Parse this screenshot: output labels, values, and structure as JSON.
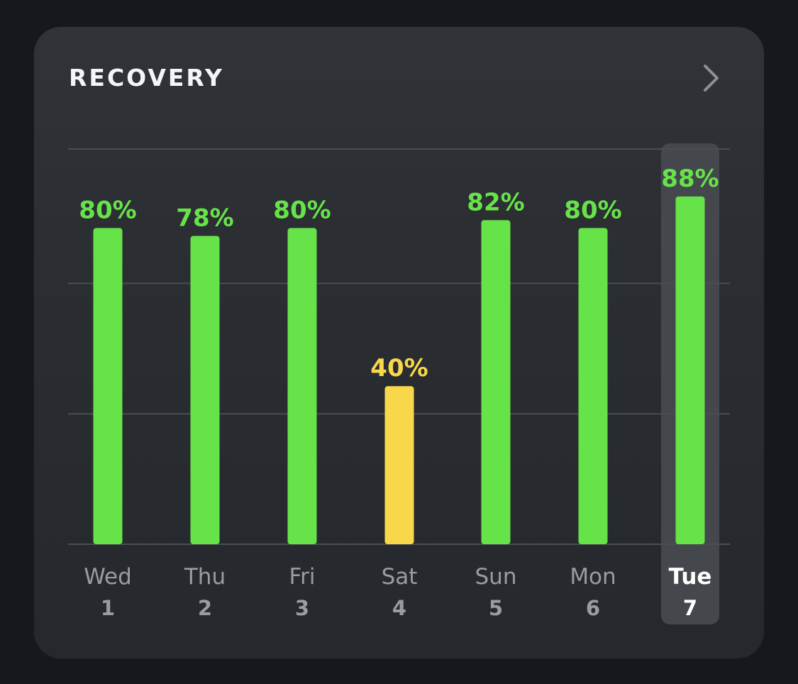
{
  "card": {
    "title": "RECOVERY",
    "chevron_icon": "chevron-right-icon"
  },
  "colors": {
    "green": "#67e34a",
    "yellow": "#f8d84a",
    "gridline": "#4a4d52",
    "highlight": "#44474c",
    "day_label": "#9a9ca0",
    "day_label_selected": "#ffffff"
  },
  "chart_data": {
    "type": "bar",
    "categories": [
      "Wed",
      "Thu",
      "Fri",
      "Sat",
      "Sun",
      "Mon",
      "Tue"
    ],
    "dates": [
      "1",
      "2",
      "3",
      "4",
      "5",
      "6",
      "7"
    ],
    "values": [
      80,
      78,
      80,
      40,
      82,
      80,
      88
    ],
    "value_labels": [
      "80%",
      "78%",
      "80%",
      "40%",
      "82%",
      "80%",
      "88%"
    ],
    "value_suffix": "%",
    "bar_colors": [
      "green",
      "green",
      "green",
      "yellow",
      "green",
      "green",
      "green"
    ],
    "selected_index": 6,
    "ylim": [
      0,
      100
    ],
    "gridlines": [
      33,
      66,
      100
    ],
    "grid": true
  }
}
